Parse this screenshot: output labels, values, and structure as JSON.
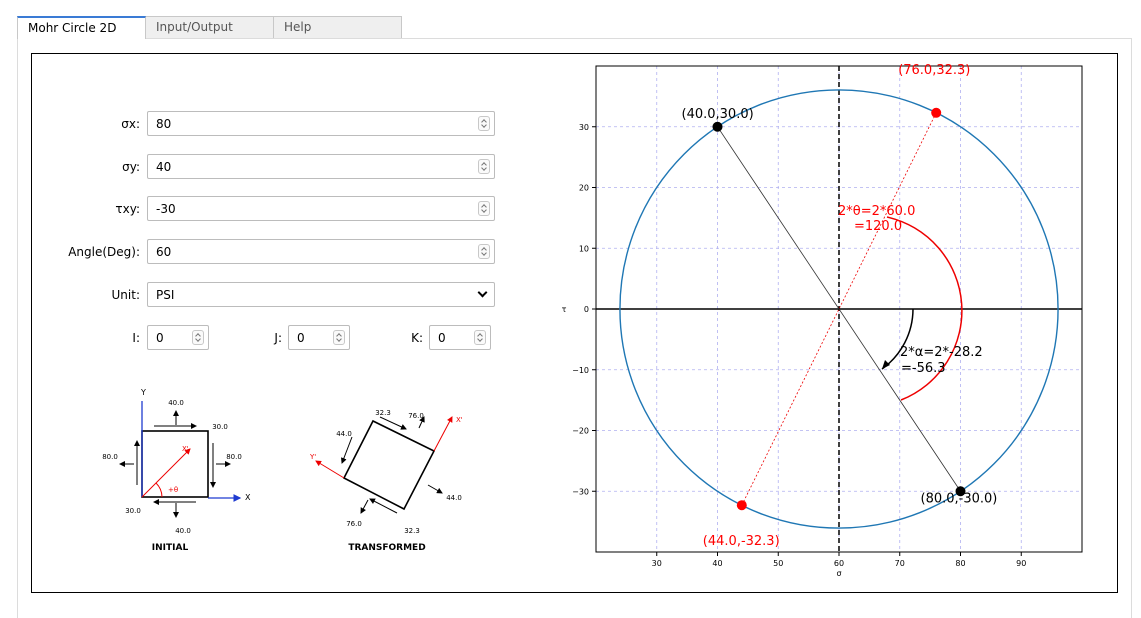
{
  "tabs": [
    {
      "label": "Mohr Circle 2D",
      "active": true
    },
    {
      "label": "Input/Output",
      "active": false
    },
    {
      "label": "Help",
      "active": false
    }
  ],
  "inputs": {
    "sx": {
      "label": "σx:",
      "value": "80"
    },
    "sy": {
      "label": "σy:",
      "value": "40"
    },
    "txy": {
      "label": "τxy:",
      "value": "-30"
    },
    "angle": {
      "label": "Angle(Deg):",
      "value": "60"
    },
    "unit": {
      "label": "Unit:",
      "value": "PSI"
    },
    "i": {
      "label": "I:",
      "value": "0"
    },
    "j": {
      "label": "J:",
      "value": "0"
    },
    "k": {
      "label": "K:",
      "value": "0"
    }
  },
  "initial_element": {
    "caption": "INITIAL",
    "axis_y": "Y",
    "axis_x": "X",
    "axis_xp": "X'",
    "theta": "+θ",
    "top": "40.0",
    "bottom": "40.0",
    "left": "80.0",
    "right": "80.0",
    "shear_right": "30.0",
    "shear_left": "30.0"
  },
  "transformed_element": {
    "caption": "TRANSFORMED",
    "axis_xp": "X'",
    "axis_yp": "Y'",
    "v_top_a": "32.3",
    "v_top_b": "76.0",
    "v_left": "44.0",
    "v_right": "44.0",
    "v_bot_a": "76.0",
    "v_bot_b": "32.3"
  },
  "chart_data": {
    "type": "scatter",
    "xlabel": "σ",
    "ylabel": "τ",
    "xlim": [
      20,
      100
    ],
    "ylim": [
      -40,
      40
    ],
    "xticks": [
      30,
      40,
      50,
      60,
      70,
      80,
      90
    ],
    "yticks": [
      -30,
      -20,
      -10,
      0,
      10,
      20,
      30
    ],
    "grid": true,
    "circle": {
      "center": 60,
      "radius": 36.06,
      "color": "#1f77b4"
    },
    "points": [
      {
        "x": 40.0,
        "y": 30.0,
        "label": "(40.0,30.0)",
        "color": "#000000"
      },
      {
        "x": 80.0,
        "y": -30.0,
        "label": "(80.0,-30.0)",
        "color": "#000000"
      },
      {
        "x": 76.0,
        "y": 32.3,
        "label": "(76.0,32.3)",
        "color": "#ff0000"
      },
      {
        "x": 44.0,
        "y": -32.3,
        "label": "(44.0,-32.3)",
        "color": "#ff0000"
      }
    ],
    "annotations": [
      {
        "line1": "2*θ=2*60.0",
        "line2": "=120.0",
        "color": "#ff0000"
      },
      {
        "line1": "2*α=2*-28.2",
        "line2": "=-56.3",
        "color": "#000000"
      }
    ]
  }
}
